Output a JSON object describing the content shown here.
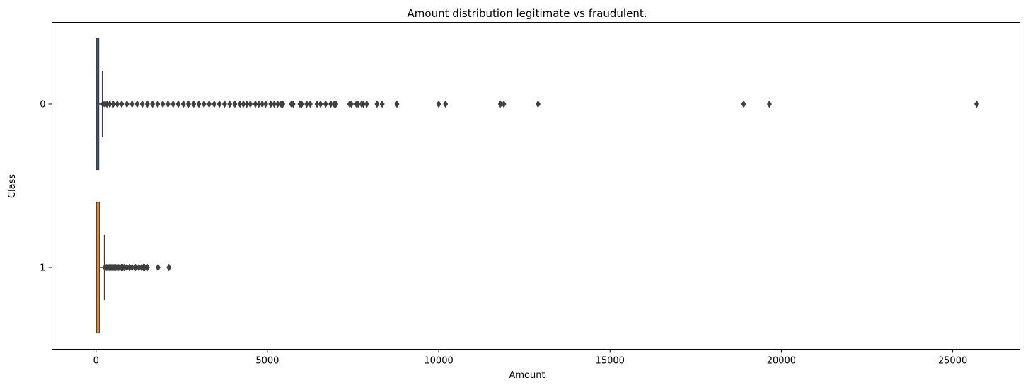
{
  "chart_data": {
    "type": "boxplot",
    "orientation": "horizontal",
    "title": "Amount distribution legitimate vs fraudulent.",
    "xlabel": "Amount",
    "ylabel": "Class",
    "xlim": [
      -1285,
      26960
    ],
    "xticks": [
      0,
      5000,
      10000,
      15000,
      20000,
      25000
    ],
    "xtick_labels": [
      "0",
      "5000",
      "10000",
      "15000",
      "20000",
      "25000"
    ],
    "grid": false,
    "legend": "none",
    "categories": [
      "0",
      "1"
    ],
    "series": [
      {
        "category": "0",
        "color": "#4f78a8",
        "min": 0,
        "q1": 5.6,
        "median": 22,
        "q3": 77,
        "whisker_high": 185,
        "outliers": [
          200,
          260,
          320,
          400,
          500,
          620,
          750,
          900,
          1050,
          1200,
          1350,
          1500,
          1650,
          1800,
          1950,
          2100,
          2250,
          2400,
          2550,
          2700,
          2850,
          3000,
          3150,
          3300,
          3450,
          3600,
          3750,
          3900,
          4050,
          4200,
          4300,
          4400,
          4500,
          4650,
          4750,
          4850,
          4950,
          5100,
          5200,
          5300,
          5400,
          5450,
          5700,
          5750,
          5950,
          6000,
          6150,
          6250,
          6450,
          6550,
          6700,
          6850,
          6950,
          7000,
          7400,
          7450,
          7600,
          7650,
          7750,
          7800,
          7900,
          8200,
          8350,
          8780,
          10000,
          10200,
          11800,
          11900,
          12900,
          18900,
          19650,
          25700
        ]
      },
      {
        "category": "1",
        "color": "#e8852b",
        "min": 0,
        "q1": 1,
        "median": 9.25,
        "q3": 105,
        "whisker_high": 245,
        "outliers": [
          260,
          300,
          340,
          380,
          420,
          460,
          500,
          540,
          580,
          620,
          660,
          700,
          740,
          780,
          820,
          900,
          980,
          1050,
          1150,
          1250,
          1330,
          1380,
          1420,
          1500,
          1810,
          2125
        ]
      }
    ]
  }
}
